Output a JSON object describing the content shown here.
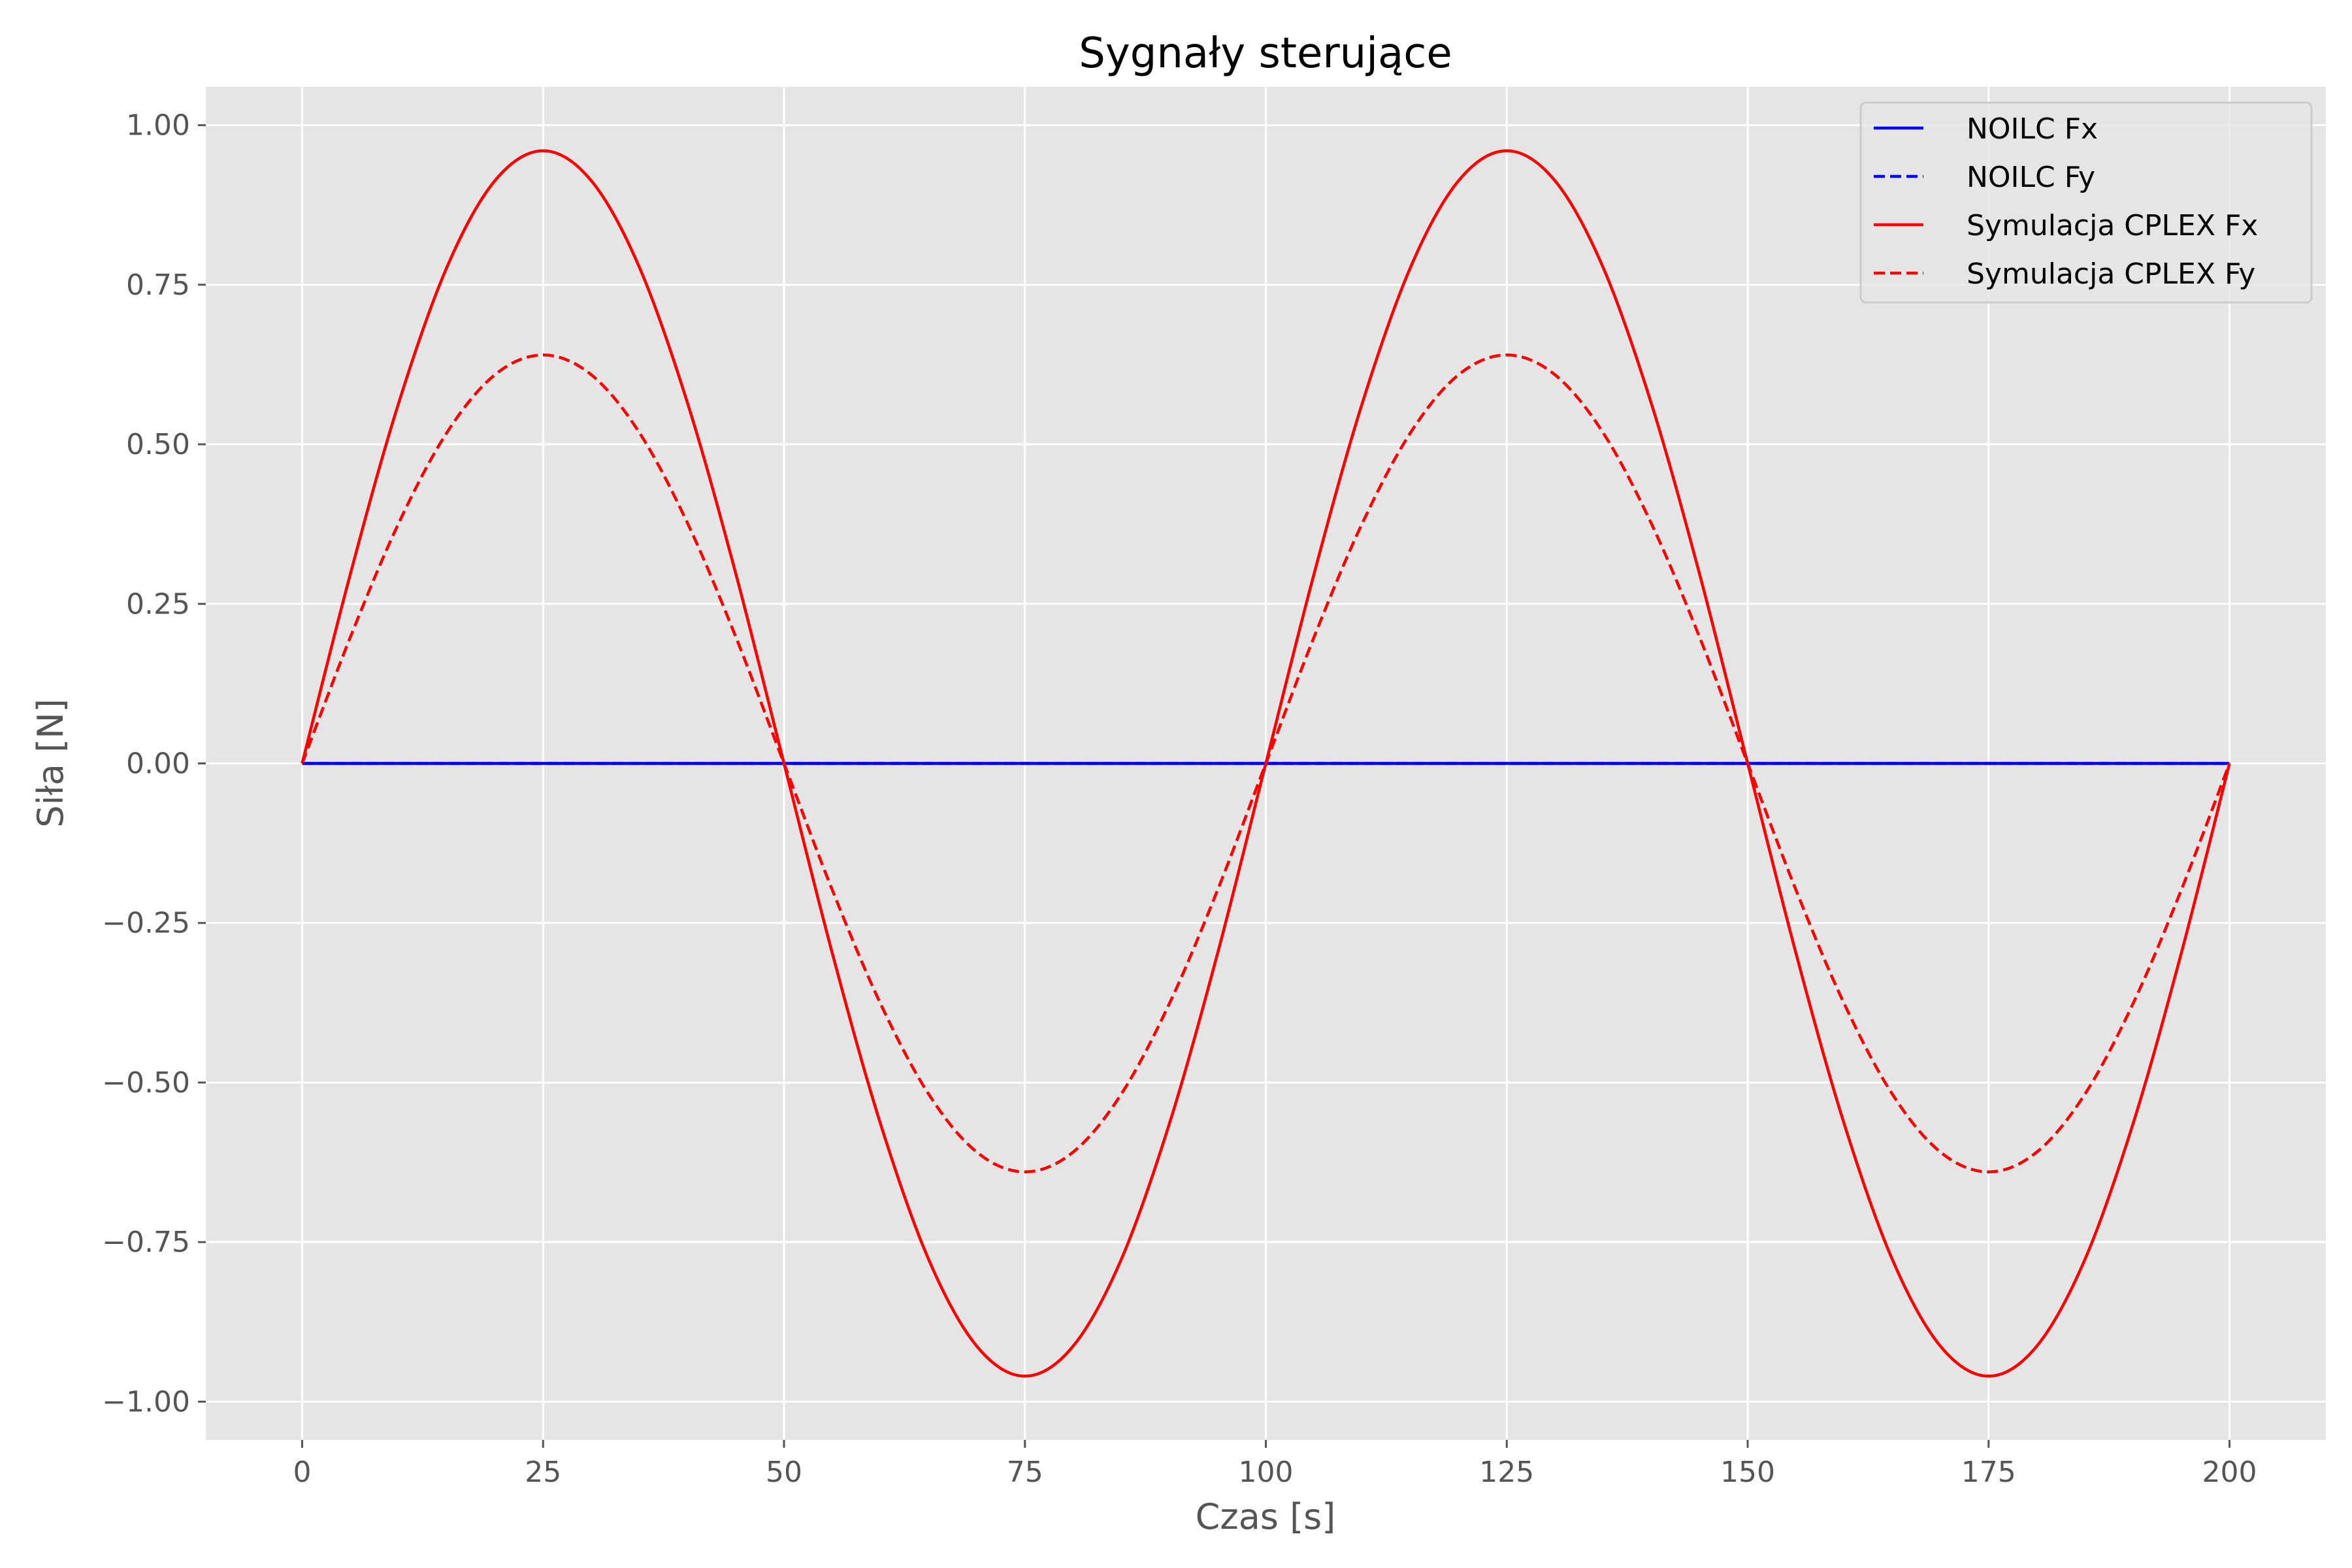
{
  "chart_data": {
    "type": "line",
    "title": "Sygnały sterujące",
    "xlabel": "Czas [s]",
    "ylabel": "Siła [N]",
    "xlim": [
      -10,
      210
    ],
    "ylim": [
      -1.06,
      1.06
    ],
    "xticks": [
      0,
      25,
      50,
      75,
      100,
      125,
      150,
      175,
      200
    ],
    "xtick_labels": [
      "0",
      "25",
      "50",
      "75",
      "100",
      "125",
      "150",
      "175",
      "200"
    ],
    "yticks": [
      1.0,
      0.75,
      0.5,
      0.25,
      0.0,
      -0.25,
      -0.5,
      -0.75,
      -1.0
    ],
    "ytick_labels": [
      "1.00",
      "0.75",
      "0.50",
      "0.25",
      "0.00",
      "−0.25",
      "−0.50",
      "−0.75",
      "−1.00"
    ],
    "grid": true,
    "legend_position": "top-right",
    "x": [
      0,
      5,
      10,
      15,
      20,
      25,
      30,
      35,
      40,
      45,
      50,
      55,
      60,
      65,
      70,
      75,
      80,
      85,
      90,
      95,
      100,
      105,
      110,
      115,
      120,
      125,
      130,
      135,
      140,
      145,
      150,
      155,
      160,
      165,
      170,
      175,
      180,
      185,
      190,
      195,
      200
    ],
    "series": [
      {
        "name": "NOILC Fx",
        "color": "#0000ff",
        "style": "solid",
        "values": [
          0,
          0,
          0,
          0,
          0,
          0,
          0,
          0,
          0,
          0,
          0,
          0,
          0,
          0,
          0,
          0,
          0,
          0,
          0,
          0,
          0,
          0,
          0,
          0,
          0,
          0,
          0,
          0,
          0,
          0,
          0,
          0,
          0,
          0,
          0,
          0,
          0,
          0,
          0,
          0,
          0
        ]
      },
      {
        "name": "NOILC Fy",
        "color": "#0000ff",
        "style": "dashed",
        "values": [
          0,
          0,
          0,
          0,
          0,
          0,
          0,
          0,
          0,
          0,
          0,
          0,
          0,
          0,
          0,
          0,
          0,
          0,
          0,
          0,
          0,
          0,
          0,
          0,
          0,
          0,
          0,
          0,
          0,
          0,
          0,
          0,
          0,
          0,
          0,
          0,
          0,
          0,
          0,
          0,
          0
        ]
      },
      {
        "name": "Symulacja CPLEX Fx",
        "color": "#ff0000",
        "style": "solid",
        "values": [
          0,
          0.297,
          0.564,
          0.777,
          0.913,
          0.96,
          0.913,
          0.777,
          0.564,
          0.297,
          0,
          -0.297,
          -0.564,
          -0.777,
          -0.913,
          -0.96,
          -0.913,
          -0.777,
          -0.564,
          -0.297,
          0,
          0.297,
          0.564,
          0.777,
          0.913,
          0.96,
          0.913,
          0.777,
          0.564,
          0.297,
          0,
          -0.297,
          -0.564,
          -0.777,
          -0.913,
          -0.96,
          -0.913,
          -0.777,
          -0.564,
          -0.297,
          0
        ]
      },
      {
        "name": "Symulacja CPLEX Fy",
        "color": "#ff0000",
        "style": "dashed",
        "values": [
          0,
          0.198,
          0.376,
          0.518,
          0.609,
          0.64,
          0.609,
          0.518,
          0.376,
          0.198,
          0,
          -0.198,
          -0.376,
          -0.518,
          -0.609,
          -0.64,
          -0.609,
          -0.518,
          -0.376,
          -0.198,
          0,
          0.198,
          0.376,
          0.518,
          0.609,
          0.64,
          0.609,
          0.518,
          0.376,
          0.198,
          0,
          -0.198,
          -0.376,
          -0.518,
          -0.609,
          -0.64,
          -0.609,
          -0.518,
          -0.376,
          -0.198,
          0
        ]
      }
    ]
  }
}
